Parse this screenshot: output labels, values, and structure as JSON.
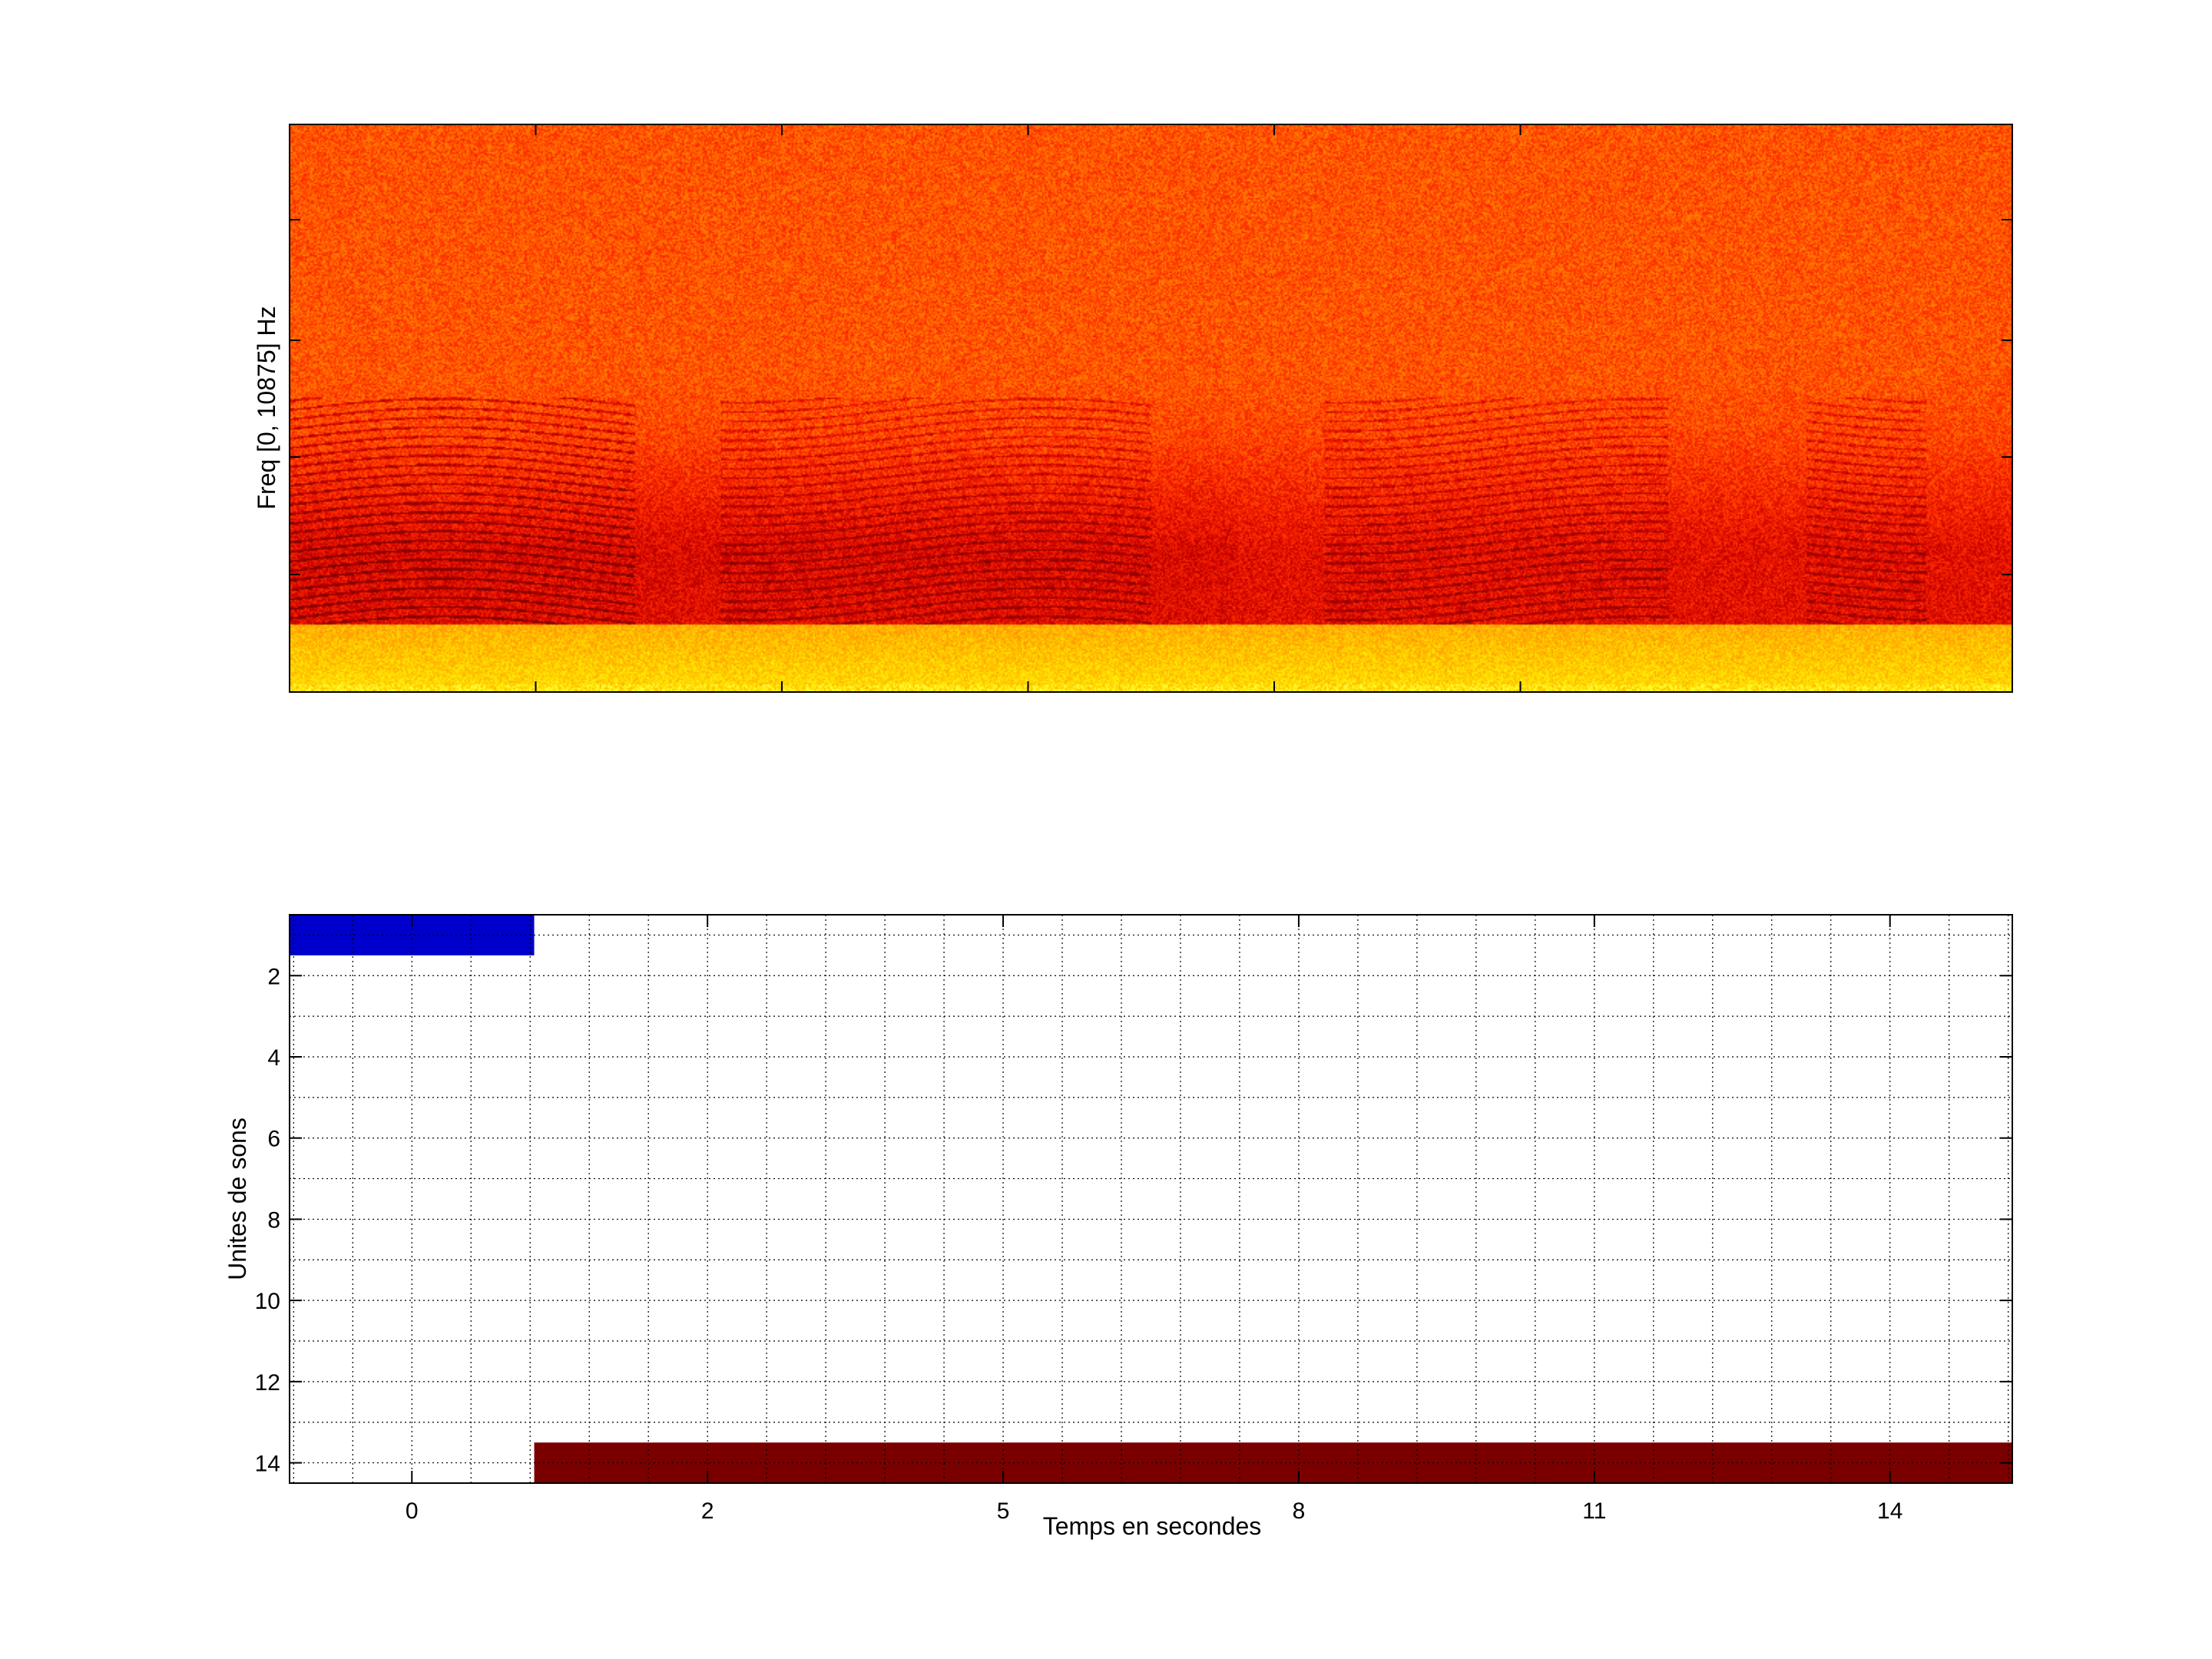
{
  "chart_data": [
    {
      "type": "heatmap",
      "subtype": "spectrogram",
      "ylabel": "Freq [0, 10875] Hz",
      "xlabel": "",
      "colormap": [
        "#7a0000",
        "#c80000",
        "#ff2a00",
        "#ff7a00",
        "#ffb000",
        "#ffe800",
        "#ffff40",
        "#40ffff"
      ],
      "x_tick_labels": [],
      "y_tick_labels": [],
      "grid": false
    },
    {
      "type": "bar",
      "subtype": "horizontal-segments",
      "xlabel": "Temps en secondes",
      "ylabel": "Unites de sons",
      "x_tick_labels": [
        "0",
        "2",
        "5",
        "8",
        "11",
        "14"
      ],
      "y_tick_labels": [
        "2",
        "4",
        "6",
        "8",
        "10",
        "12",
        "14"
      ],
      "xlim": [
        -1.2,
        15.7
      ],
      "ylim": [
        0.5,
        14.5
      ],
      "y_reversed": true,
      "grid": true,
      "segments": [
        {
          "unit": 1,
          "start": -1.2,
          "end": 1.2,
          "color": "#0000cc"
        },
        {
          "unit": 14,
          "start": 1.2,
          "end": 15.7,
          "color": "#7a0000"
        }
      ]
    }
  ]
}
